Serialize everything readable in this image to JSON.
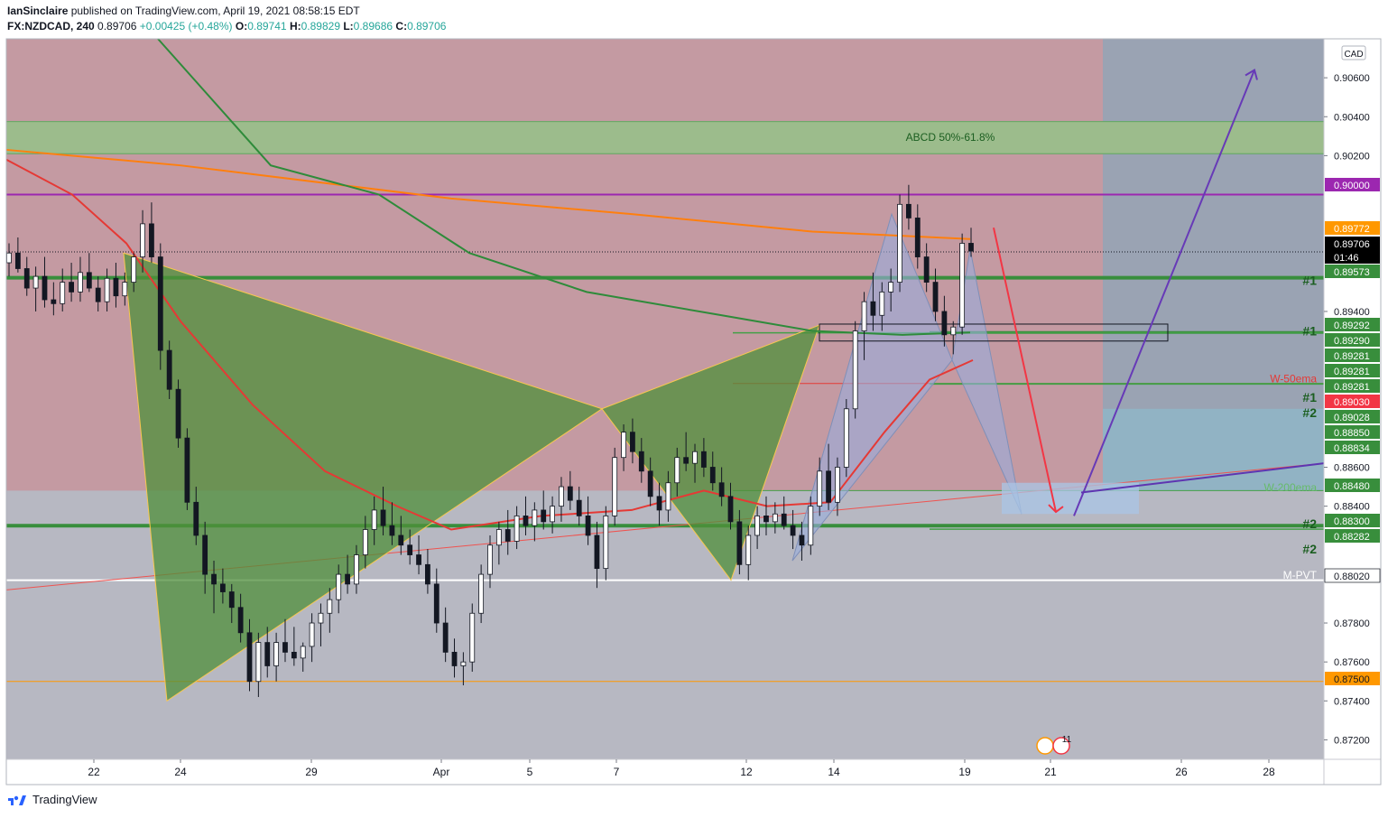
{
  "header": {
    "author": "IanSinclaire",
    "published_text": " published on TradingView.com, April 19, 2021 08:58:15 EDT",
    "symbol": "FX:NZDCAD, 240",
    "last": "0.89706",
    "change": "+0.00425 (+0.48%)",
    "o_label": "O:",
    "o_val": "0.89741",
    "h_label": "H:",
    "h_val": "0.89829",
    "l_label": "L:",
    "l_val": "0.89686",
    "c_label": "C:",
    "c_val": "0.89706"
  },
  "footer": {
    "brand": "TradingView"
  },
  "chart_data": {
    "type": "candlestick",
    "currency": "CAD",
    "ylim": [
      0.871,
      0.908
    ],
    "y_ticks": [
      "0.90600",
      "0.90400",
      "0.90200",
      "0.89400",
      "0.88600",
      "0.88400",
      "0.87800",
      "0.87600",
      "0.87400",
      "0.87200"
    ],
    "x_ticks": [
      "22",
      "24",
      "29",
      "Apr",
      "5",
      "7",
      "12",
      "14",
      "19",
      "21",
      "26",
      "28"
    ],
    "countdown": "01:46",
    "price_labels": [
      {
        "value": 0.9,
        "text": "0.90000",
        "bg": "#9c27b0",
        "fg": "#ffffff"
      },
      {
        "value": 0.89772,
        "text": "0.89772",
        "bg": "#ff9800",
        "fg": "#ffffff"
      },
      {
        "value": 0.89706,
        "text": "0.89706",
        "bg": "#000000",
        "fg": "#ffffff",
        "countdown": true
      },
      {
        "value": 0.89573,
        "text": "0.89573",
        "bg": "#388e3c",
        "fg": "#ffffff"
      },
      {
        "value": 0.89292,
        "text": "0.89292",
        "bg": "#388e3c",
        "fg": "#ffffff"
      },
      {
        "value": 0.8929,
        "text": "0.89290",
        "bg": "#388e3c",
        "fg": "#ffffff"
      },
      {
        "value": 0.89281,
        "text": "0.89281",
        "bg": "#388e3c",
        "fg": "#ffffff"
      },
      {
        "value": 0.89281,
        "text": "0.89281",
        "bg": "#388e3c",
        "fg": "#ffffff"
      },
      {
        "value": 0.89281,
        "text": "0.89281",
        "bg": "#388e3c",
        "fg": "#ffffff"
      },
      {
        "value": 0.8903,
        "text": "0.89030",
        "bg": "#f23645",
        "fg": "#ffffff"
      },
      {
        "value": 0.89028,
        "text": "0.89028",
        "bg": "#388e3c",
        "fg": "#ffffff"
      },
      {
        "value": 0.8885,
        "text": "0.88850",
        "bg": "#388e3c",
        "fg": "#ffffff"
      },
      {
        "value": 0.88834,
        "text": "0.88834",
        "bg": "#388e3c",
        "fg": "#ffffff"
      },
      {
        "value": 0.8848,
        "text": "0.88480",
        "bg": "#388e3c",
        "fg": "#ffffff"
      },
      {
        "value": 0.883,
        "text": "0.88300",
        "bg": "#388e3c",
        "fg": "#ffffff"
      },
      {
        "value": 0.88282,
        "text": "0.88282",
        "bg": "#388e3c",
        "fg": "#ffffff"
      },
      {
        "value": 0.8802,
        "text": "0.88020",
        "bg": "#ffffff",
        "fg": "#131722"
      },
      {
        "value": 0.875,
        "text": "0.87500",
        "bg": "#ff9800",
        "fg": "#131722"
      }
    ],
    "annotations": [
      {
        "text": "ABCD 50%-61.8%",
        "color": "#1b5e20"
      },
      {
        "text": "#1",
        "color": "#1b5e20"
      },
      {
        "text": "#1",
        "color": "#1b5e20"
      },
      {
        "text": "W-50ema",
        "color": "#e53935"
      },
      {
        "text": "#1",
        "color": "#1b5e20"
      },
      {
        "text": "#2",
        "color": "#1b5e20"
      },
      {
        "text": "W-200ema",
        "color": "#66bb6a"
      },
      {
        "text": "#2",
        "color": "#1b5e20"
      },
      {
        "text": "#2",
        "color": "#1b5e20"
      },
      {
        "text": "M-PVT",
        "color": "#ffffff"
      }
    ],
    "event_badge": "11",
    "candles": [
      [
        0.8965,
        0.8975,
        0.8958,
        0.897
      ],
      [
        0.897,
        0.8978,
        0.896,
        0.8962
      ],
      [
        0.8962,
        0.8968,
        0.8948,
        0.8952
      ],
      [
        0.8952,
        0.8963,
        0.894,
        0.8958
      ],
      [
        0.8958,
        0.8968,
        0.8942,
        0.8946
      ],
      [
        0.8946,
        0.8955,
        0.8938,
        0.8944
      ],
      [
        0.8944,
        0.8962,
        0.894,
        0.8955
      ],
      [
        0.8955,
        0.8965,
        0.8945,
        0.895
      ],
      [
        0.895,
        0.8968,
        0.8945,
        0.896
      ],
      [
        0.896,
        0.897,
        0.895,
        0.8952
      ],
      [
        0.8952,
        0.8958,
        0.894,
        0.8945
      ],
      [
        0.8945,
        0.8962,
        0.894,
        0.8957
      ],
      [
        0.8957,
        0.8965,
        0.8942,
        0.8948
      ],
      [
        0.8948,
        0.896,
        0.8943,
        0.8955
      ],
      [
        0.8955,
        0.897,
        0.895,
        0.8968
      ],
      [
        0.8968,
        0.8992,
        0.896,
        0.8985
      ],
      [
        0.8985,
        0.8996,
        0.8965,
        0.8968
      ],
      [
        0.8968,
        0.8975,
        0.891,
        0.892
      ],
      [
        0.892,
        0.8925,
        0.8895,
        0.89
      ],
      [
        0.89,
        0.8905,
        0.887,
        0.8875
      ],
      [
        0.8875,
        0.888,
        0.8838,
        0.8842
      ],
      [
        0.8842,
        0.885,
        0.882,
        0.8825
      ],
      [
        0.8825,
        0.8832,
        0.8795,
        0.8805
      ],
      [
        0.8805,
        0.8812,
        0.8785,
        0.88
      ],
      [
        0.88,
        0.8808,
        0.879,
        0.8796
      ],
      [
        0.8796,
        0.88,
        0.878,
        0.8788
      ],
      [
        0.8788,
        0.8795,
        0.877,
        0.8775
      ],
      [
        0.8775,
        0.8782,
        0.8745,
        0.875
      ],
      [
        0.875,
        0.8775,
        0.8742,
        0.877
      ],
      [
        0.877,
        0.8778,
        0.8752,
        0.8758
      ],
      [
        0.8758,
        0.8775,
        0.875,
        0.877
      ],
      [
        0.877,
        0.8782,
        0.876,
        0.8765
      ],
      [
        0.8765,
        0.8778,
        0.8758,
        0.8762
      ],
      [
        0.8762,
        0.877,
        0.8755,
        0.8768
      ],
      [
        0.8768,
        0.8785,
        0.876,
        0.878
      ],
      [
        0.878,
        0.879,
        0.8768,
        0.8785
      ],
      [
        0.8785,
        0.8798,
        0.8775,
        0.8792
      ],
      [
        0.8792,
        0.881,
        0.8785,
        0.8805
      ],
      [
        0.8805,
        0.8815,
        0.8795,
        0.88
      ],
      [
        0.88,
        0.882,
        0.8795,
        0.8815
      ],
      [
        0.8815,
        0.8835,
        0.8808,
        0.8828
      ],
      [
        0.8828,
        0.8845,
        0.882,
        0.8838
      ],
      [
        0.8838,
        0.885,
        0.8825,
        0.883
      ],
      [
        0.883,
        0.8842,
        0.882,
        0.8825
      ],
      [
        0.8825,
        0.8835,
        0.8815,
        0.882
      ],
      [
        0.882,
        0.8828,
        0.881,
        0.8815
      ],
      [
        0.8815,
        0.8825,
        0.8805,
        0.881
      ],
      [
        0.881,
        0.8818,
        0.8795,
        0.88
      ],
      [
        0.88,
        0.8808,
        0.8775,
        0.878
      ],
      [
        0.878,
        0.8788,
        0.876,
        0.8765
      ],
      [
        0.8765,
        0.8772,
        0.8752,
        0.8758
      ],
      [
        0.8758,
        0.8765,
        0.8748,
        0.876
      ],
      [
        0.876,
        0.879,
        0.8755,
        0.8785
      ],
      [
        0.8785,
        0.881,
        0.878,
        0.8805
      ],
      [
        0.8805,
        0.8825,
        0.8798,
        0.882
      ],
      [
        0.882,
        0.8832,
        0.881,
        0.8828
      ],
      [
        0.8828,
        0.8838,
        0.8815,
        0.8822
      ],
      [
        0.8822,
        0.884,
        0.8818,
        0.8835
      ],
      [
        0.8835,
        0.8845,
        0.8825,
        0.883
      ],
      [
        0.883,
        0.8842,
        0.8822,
        0.8838
      ],
      [
        0.8838,
        0.8848,
        0.8828,
        0.8832
      ],
      [
        0.8832,
        0.8845,
        0.8826,
        0.884
      ],
      [
        0.884,
        0.8855,
        0.8832,
        0.885
      ],
      [
        0.885,
        0.8858,
        0.8838,
        0.8843
      ],
      [
        0.8843,
        0.885,
        0.883,
        0.8835
      ],
      [
        0.8835,
        0.8845,
        0.882,
        0.8825
      ],
      [
        0.8825,
        0.8832,
        0.8798,
        0.8808
      ],
      [
        0.8808,
        0.884,
        0.8802,
        0.8835
      ],
      [
        0.8835,
        0.887,
        0.883,
        0.8865
      ],
      [
        0.8865,
        0.8882,
        0.8858,
        0.8878
      ],
      [
        0.8878,
        0.8885,
        0.8862,
        0.8868
      ],
      [
        0.8868,
        0.8875,
        0.8852,
        0.8858
      ],
      [
        0.8858,
        0.8865,
        0.884,
        0.8845
      ],
      [
        0.8845,
        0.8852,
        0.883,
        0.8838
      ],
      [
        0.8838,
        0.8858,
        0.8832,
        0.8852
      ],
      [
        0.8852,
        0.887,
        0.8845,
        0.8865
      ],
      [
        0.8865,
        0.8878,
        0.8858,
        0.8862
      ],
      [
        0.8862,
        0.8872,
        0.8852,
        0.8868
      ],
      [
        0.8868,
        0.8875,
        0.8855,
        0.886
      ],
      [
        0.886,
        0.8868,
        0.8848,
        0.8852
      ],
      [
        0.8852,
        0.886,
        0.884,
        0.8845
      ],
      [
        0.8845,
        0.8852,
        0.8828,
        0.8832
      ],
      [
        0.8832,
        0.8838,
        0.8805,
        0.881
      ],
      [
        0.881,
        0.883,
        0.8802,
        0.8825
      ],
      [
        0.8825,
        0.884,
        0.8818,
        0.8835
      ],
      [
        0.8835,
        0.8845,
        0.8825,
        0.8832
      ],
      [
        0.8832,
        0.8842,
        0.8826,
        0.8836
      ],
      [
        0.8836,
        0.8845,
        0.8828,
        0.883
      ],
      [
        0.883,
        0.8838,
        0.8818,
        0.8825
      ],
      [
        0.8825,
        0.8832,
        0.8812,
        0.882
      ],
      [
        0.882,
        0.8845,
        0.8815,
        0.884
      ],
      [
        0.884,
        0.8865,
        0.8835,
        0.8858
      ],
      [
        0.8858,
        0.8872,
        0.8838,
        0.8842
      ],
      [
        0.8842,
        0.8865,
        0.8835,
        0.886
      ],
      [
        0.886,
        0.8895,
        0.8855,
        0.889
      ],
      [
        0.889,
        0.8935,
        0.8885,
        0.893
      ],
      [
        0.893,
        0.895,
        0.8915,
        0.8945
      ],
      [
        0.8945,
        0.896,
        0.893,
        0.8938
      ],
      [
        0.8938,
        0.8955,
        0.893,
        0.895
      ],
      [
        0.895,
        0.8962,
        0.894,
        0.8955
      ],
      [
        0.8955,
        0.9,
        0.895,
        0.8995
      ],
      [
        0.8995,
        0.9005,
        0.8982,
        0.8988
      ],
      [
        0.8988,
        0.8995,
        0.8962,
        0.8968
      ],
      [
        0.8968,
        0.8975,
        0.895,
        0.8955
      ],
      [
        0.8955,
        0.8962,
        0.8935,
        0.894
      ],
      [
        0.894,
        0.8948,
        0.8922,
        0.8928
      ],
      [
        0.8928,
        0.8935,
        0.8918,
        0.8932
      ],
      [
        0.8932,
        0.898,
        0.8928,
        0.8975
      ],
      [
        0.8975,
        0.8983,
        0.8968,
        0.8971
      ]
    ]
  }
}
